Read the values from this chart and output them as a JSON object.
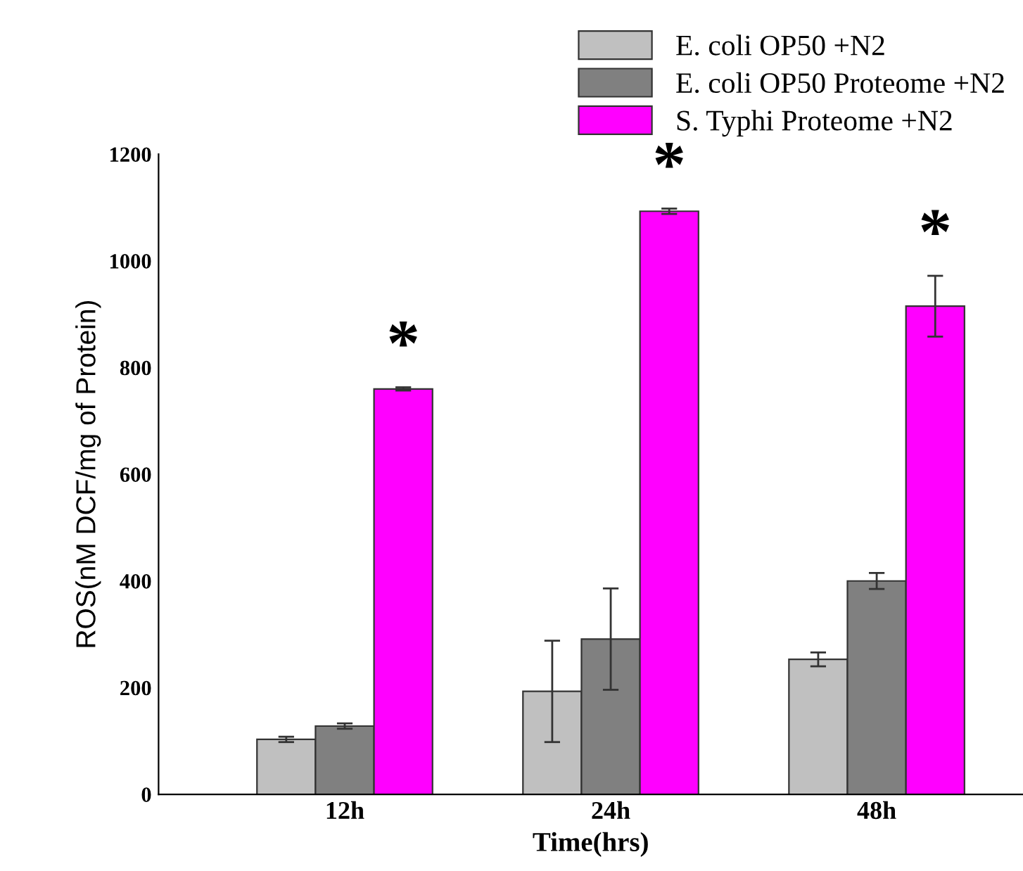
{
  "chart_data": {
    "type": "bar",
    "xlabel": "Time(hrs)",
    "ylabel": "ROS(nM DCF/mg of Protein)",
    "categories": [
      "12h",
      "24h",
      "48h"
    ],
    "series": [
      {
        "name": "E. coli OP50 +N2",
        "color": "#c0c0c0",
        "values": [
          103,
          193,
          253
        ],
        "errors": [
          5,
          95,
          13
        ]
      },
      {
        "name": "E. coli OP50 Proteome +N2",
        "color": "#808080",
        "values": [
          128,
          291,
          400
        ],
        "errors": [
          5,
          95,
          15
        ]
      },
      {
        "name": "S. Typhi Proteome +N2",
        "color": "#ff00ff",
        "values": [
          760,
          1093,
          915
        ],
        "errors": [
          3,
          5,
          57
        ]
      }
    ],
    "annotations": [
      "*",
      "*",
      "*"
    ],
    "ylim": [
      0,
      1200
    ],
    "yticks": [
      0,
      200,
      400,
      600,
      800,
      1000,
      1200
    ],
    "grid": false,
    "legend": "top right"
  }
}
